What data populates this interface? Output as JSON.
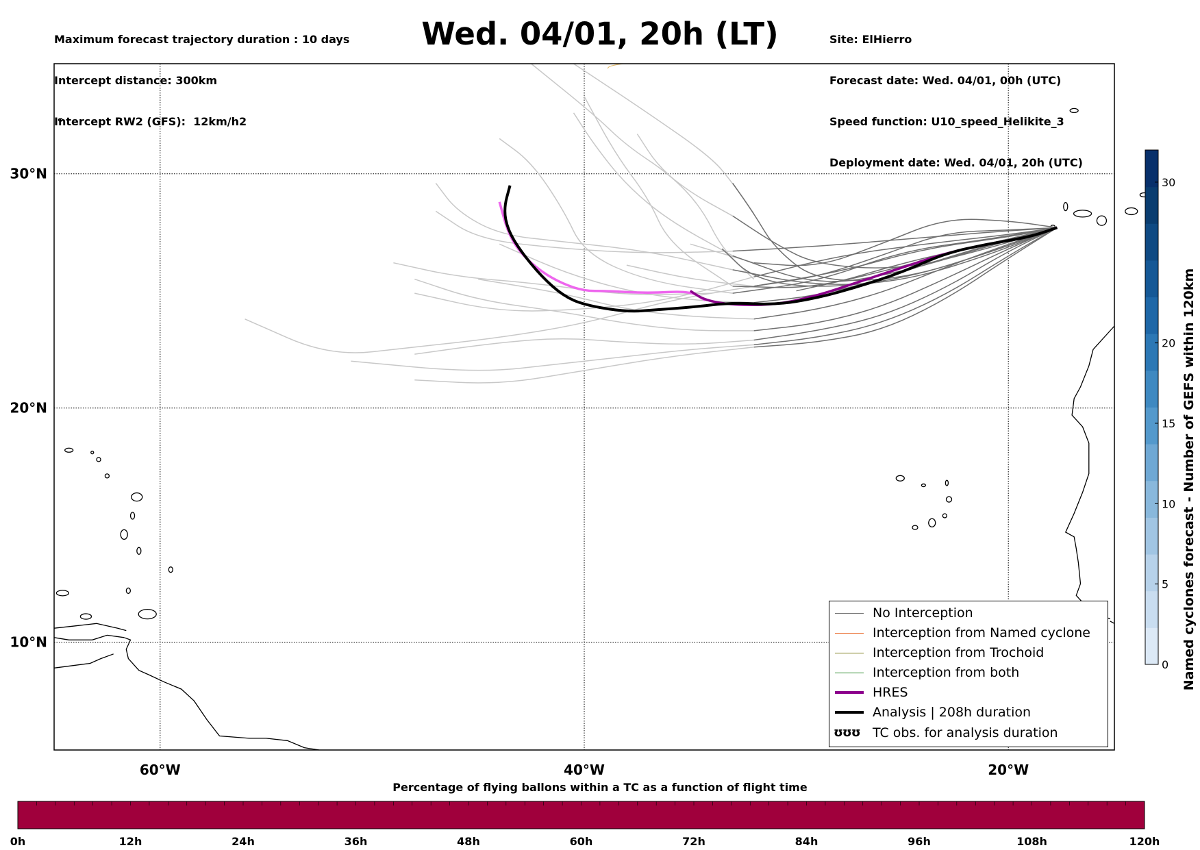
{
  "header": {
    "left_lines": [
      "Maximum forecast trajectory duration : 10 days",
      "Intercept distance: 300km",
      "Intercept RW2 (GFS):  12km/h2"
    ],
    "title": "Wed. 04/01, 20h (LT)",
    "right_lines": [
      "Site: ElHierro",
      "Forecast date: Wed. 04/01, 00h (UTC)",
      "Speed function: U10_speed_Helikite_3",
      "Deployment date: Wed. 04/01, 20h (UTC)"
    ]
  },
  "map": {
    "lat_labels": [
      "30°N",
      "20°N",
      "10°N"
    ],
    "lon_labels": [
      "60°W",
      "40°W",
      "20°W"
    ],
    "gridline_lats": [
      30,
      20,
      10
    ],
    "gridline_lons": [
      -60,
      -40,
      -20
    ],
    "extent": {
      "lon_min": -65,
      "lon_max": -15,
      "lat_min": 5.4,
      "lat_max": 34.7
    },
    "colors": {
      "no_interception": "#707070",
      "ensemble_far": "#c8c8c8",
      "named_cyclone": "#e8601c",
      "trochoid": "#808020",
      "both": "#2e8b2e",
      "hres": "#8b008b",
      "hres_extension": "#ee66ee",
      "analysis": "#000000"
    },
    "hres_track": [
      [
        -17.7,
        27.7
      ],
      [
        -19,
        27.3
      ],
      [
        -21,
        27
      ],
      [
        -23,
        26.6
      ],
      [
        -25,
        26
      ],
      [
        -27,
        25.4
      ],
      [
        -29,
        24.8
      ],
      [
        -31,
        24.4
      ],
      [
        -33,
        24.4
      ],
      [
        -34.3,
        24.6
      ],
      [
        -35,
        25
      ],
      [
        -37,
        24.9
      ],
      [
        -39,
        25
      ],
      [
        -40,
        25
      ],
      [
        -41,
        25.3
      ],
      [
        -42,
        25.8
      ],
      [
        -43,
        26.6
      ],
      [
        -43.6,
        27.5
      ],
      [
        -44,
        28.8
      ]
    ],
    "analysis_track": [
      [
        -17.7,
        27.7
      ],
      [
        -19,
        27.3
      ],
      [
        -21,
        27
      ],
      [
        -23,
        26.6
      ],
      [
        -25,
        25.8
      ],
      [
        -27,
        25.2
      ],
      [
        -29,
        24.7
      ],
      [
        -31,
        24.4
      ],
      [
        -33,
        24.5
      ],
      [
        -35,
        24.3
      ],
      [
        -36.5,
        24.2
      ],
      [
        -38,
        24.1
      ],
      [
        -40,
        24.4
      ],
      [
        -41,
        24.8
      ],
      [
        -42,
        25.6
      ],
      [
        -43,
        26.7
      ],
      [
        -43.6,
        27.6
      ],
      [
        -43.8,
        28.5
      ],
      [
        -43.5,
        29.5
      ]
    ],
    "ensemble_tracks": [
      [
        [
          -17.7,
          27.7
        ],
        [
          -20,
          28
        ],
        [
          -23,
          28.1
        ],
        [
          -26,
          27
        ],
        [
          -29,
          26
        ],
        [
          -32,
          26.2
        ],
        [
          -35,
          27
        ]
      ],
      [
        [
          -17.7,
          27.7
        ],
        [
          -20,
          27.6
        ],
        [
          -23,
          27.5
        ],
        [
          -26,
          26.5
        ],
        [
          -29,
          25.6
        ],
        [
          -32,
          25.2
        ],
        [
          -35,
          25.5
        ],
        [
          -38,
          26.1
        ]
      ],
      [
        [
          -17.7,
          27.7
        ],
        [
          -20,
          27.2
        ],
        [
          -23,
          26.4
        ],
        [
          -26,
          25.5
        ],
        [
          -29,
          24.8
        ],
        [
          -32,
          24.5
        ],
        [
          -35,
          24.6
        ],
        [
          -38,
          25
        ],
        [
          -41,
          25.8
        ],
        [
          -44,
          27
        ]
      ],
      [
        [
          -17.7,
          27.7
        ],
        [
          -20,
          27
        ],
        [
          -23,
          26
        ],
        [
          -26,
          24.9
        ],
        [
          -29,
          24.2
        ],
        [
          -32,
          23.8
        ],
        [
          -35,
          23.9
        ],
        [
          -38,
          24.2
        ],
        [
          -41,
          24.9
        ],
        [
          -45,
          25.5
        ]
      ],
      [
        [
          -17.7,
          27.7
        ],
        [
          -20,
          26.8
        ],
        [
          -23,
          25.5
        ],
        [
          -26,
          24.3
        ],
        [
          -29,
          23.6
        ],
        [
          -32,
          23.3
        ],
        [
          -35,
          23.3
        ],
        [
          -38,
          23.6
        ],
        [
          -41,
          24.1
        ],
        [
          -45,
          24.6
        ],
        [
          -48,
          25.5
        ]
      ],
      [
        [
          -17.7,
          27.7
        ],
        [
          -20,
          26.7
        ],
        [
          -23,
          25.1
        ],
        [
          -26,
          23.9
        ],
        [
          -29,
          23.3
        ],
        [
          -32,
          22.9
        ],
        [
          -35,
          22.7
        ],
        [
          -38,
          22.8
        ],
        [
          -41,
          23
        ],
        [
          -44,
          22.8
        ],
        [
          -48,
          22.3
        ]
      ],
      [
        [
          -17.7,
          27.7
        ],
        [
          -20,
          26.5
        ],
        [
          -23,
          24.8
        ],
        [
          -26,
          23.6
        ],
        [
          -29,
          23
        ],
        [
          -32,
          22.7
        ],
        [
          -35,
          22.5
        ],
        [
          -38,
          22.2
        ],
        [
          -41,
          21.9
        ],
        [
          -45,
          21.5
        ],
        [
          -51,
          22
        ]
      ],
      [
        [
          -17.7,
          27.7
        ],
        [
          -20,
          26.4
        ],
        [
          -23,
          24.6
        ],
        [
          -26,
          23.3
        ],
        [
          -29,
          22.8
        ],
        [
          -32,
          22.6
        ],
        [
          -36,
          22.2
        ],
        [
          -40,
          21.6
        ],
        [
          -44,
          21
        ],
        [
          -48,
          21.2
        ]
      ],
      [
        [
          -17.7,
          27.7
        ],
        [
          -20,
          27.4
        ],
        [
          -24,
          27
        ],
        [
          -28,
          26.5
        ],
        [
          -32,
          25.6
        ],
        [
          -36,
          24.6
        ],
        [
          -40,
          24.2
        ],
        [
          -44,
          24.1
        ],
        [
          -48,
          24.9
        ]
      ],
      [
        [
          -17.7,
          27.7
        ],
        [
          -20,
          27.3
        ],
        [
          -24,
          26.8
        ],
        [
          -28,
          25.8
        ],
        [
          -32,
          25.2
        ],
        [
          -36,
          24.6
        ],
        [
          -40,
          23.6
        ],
        [
          -44,
          23
        ],
        [
          -48,
          22.6
        ],
        [
          -52,
          22.2
        ],
        [
          -56,
          23.8
        ]
      ],
      [
        [
          -17.7,
          27.7
        ],
        [
          -21,
          27.5
        ],
        [
          -25,
          27.2
        ],
        [
          -29,
          26.9
        ],
        [
          -33,
          26.7
        ],
        [
          -37,
          26.6
        ],
        [
          -41,
          26.8
        ],
        [
          -45,
          27.2
        ],
        [
          -47,
          28.4
        ]
      ],
      [
        [
          -17.7,
          27.7
        ],
        [
          -21,
          27.2
        ],
        [
          -25,
          26.7
        ],
        [
          -29,
          25.4
        ],
        [
          -33,
          24.9
        ],
        [
          -37,
          25.4
        ],
        [
          -40,
          26.6
        ],
        [
          -41,
          28.5
        ],
        [
          -42.5,
          30.5
        ],
        [
          -44,
          31.5
        ]
      ],
      [
        [
          -17.7,
          27.7
        ],
        [
          -21,
          27
        ],
        [
          -25,
          26.2
        ],
        [
          -29,
          25.1
        ],
        [
          -33,
          25.2
        ],
        [
          -36,
          27
        ],
        [
          -37,
          29
        ],
        [
          -38.5,
          30.8
        ],
        [
          -40,
          33.3
        ]
      ],
      [
        [
          -17.7,
          27.7
        ],
        [
          -21,
          26.9
        ],
        [
          -25,
          25.8
        ],
        [
          -29,
          25.2
        ],
        [
          -33,
          26.5
        ],
        [
          -36,
          28
        ],
        [
          -38,
          29.5
        ],
        [
          -39.5,
          31.2
        ],
        [
          -40.5,
          32.6
        ]
      ],
      [
        [
          -17.7,
          27.7
        ],
        [
          -21,
          26.8
        ],
        [
          -25,
          25.9
        ],
        [
          -29,
          26.1
        ],
        [
          -31,
          27
        ],
        [
          -33,
          28.2
        ],
        [
          -35,
          29.2
        ],
        [
          -36.5,
          30.3
        ],
        [
          -37.5,
          31.7
        ]
      ],
      [
        [
          -17.7,
          27.7
        ],
        [
          -21,
          26.6
        ],
        [
          -25,
          25.5
        ],
        [
          -29,
          25.4
        ],
        [
          -31,
          26.8
        ],
        [
          -32,
          28.3
        ],
        [
          -33,
          29.6
        ],
        [
          -34,
          30.7
        ],
        [
          -37,
          32.6
        ],
        [
          -40.5,
          34.7
        ]
      ],
      [
        [
          -17.7,
          27.7
        ],
        [
          -21,
          26.6
        ],
        [
          -25,
          25.5
        ],
        [
          -29,
          25.1
        ],
        [
          -32,
          25.5
        ],
        [
          -33.5,
          26.8
        ],
        [
          -34.5,
          28.6
        ],
        [
          -36,
          30
        ],
        [
          -38,
          31.2
        ],
        [
          -39.5,
          32.5
        ],
        [
          -42.5,
          34.7
        ]
      ],
      [
        [
          -17.7,
          27.7
        ],
        [
          -21,
          26.5
        ],
        [
          -25,
          25.4
        ],
        [
          -29,
          25.2
        ],
        [
          -33,
          25.9
        ],
        [
          -37,
          26.7
        ],
        [
          -41,
          27.1
        ],
        [
          -44,
          27.4
        ],
        [
          -46,
          28.4
        ],
        [
          -47,
          29.6
        ]
      ],
      [
        [
          -17.7,
          27.7
        ],
        [
          -22,
          26.8
        ],
        [
          -26,
          25.8
        ],
        [
          -30,
          25
        ],
        [
          -34,
          24.9
        ],
        [
          -38,
          24.8
        ],
        [
          -42,
          25.3
        ],
        [
          -46,
          25.6
        ],
        [
          -49,
          26.2
        ]
      ]
    ],
    "ensemble_near_count": 8,
    "tc_small_track": [
      [
        -38.2,
        34.7
      ],
      [
        -38.8,
        34.6
      ],
      [
        -38.9,
        34.5
      ]
    ],
    "coastlines": [
      [
        [
          -15,
          23.5
        ],
        [
          -16,
          22.5
        ],
        [
          -16.2,
          21.8
        ],
        [
          -16.6,
          20.9
        ],
        [
          -16.9,
          20.4
        ],
        [
          -17,
          19.7
        ],
        [
          -16.5,
          19.2
        ],
        [
          -16.2,
          18.5
        ],
        [
          -16.2,
          17.2
        ],
        [
          -16.5,
          16.4
        ],
        [
          -16.9,
          15.5
        ],
        [
          -17.3,
          14.7
        ],
        [
          -16.9,
          14.5
        ],
        [
          -16.8,
          14
        ],
        [
          -16.7,
          13.4
        ],
        [
          -16.6,
          12.5
        ],
        [
          -16.8,
          12
        ],
        [
          -16.3,
          11.5
        ],
        [
          -15.8,
          11.2
        ],
        [
          -15.2,
          11
        ]
      ],
      [
        [
          -15,
          10.8
        ],
        [
          -15.2,
          10.9
        ]
      ],
      [
        [
          -61.6,
          10.5
        ],
        [
          -62,
          10.6
        ],
        [
          -63,
          10.8
        ],
        [
          -64,
          10.7
        ],
        [
          -65,
          10.6
        ]
      ],
      [
        [
          -61.7,
          10.2
        ],
        [
          -61.4,
          10.1
        ],
        [
          -61.6,
          9.7
        ],
        [
          -61.5,
          9.3
        ],
        [
          -61,
          8.8
        ],
        [
          -60.5,
          8.6
        ],
        [
          -59.8,
          8.3
        ],
        [
          -59,
          8
        ],
        [
          -58.4,
          7.5
        ],
        [
          -57.8,
          6.7
        ],
        [
          -57.2,
          6
        ],
        [
          -55.8,
          5.9
        ],
        [
          -55,
          5.9
        ],
        [
          -54,
          5.8
        ],
        [
          -53.2,
          5.5
        ],
        [
          -52.5,
          5.4
        ]
      ],
      [
        [
          -61.7,
          10.2
        ],
        [
          -62.5,
          10.3
        ],
        [
          -63.2,
          10.1
        ],
        [
          -64.3,
          10.1
        ],
        [
          -65,
          10.2
        ]
      ],
      [
        [
          -62.2,
          9.5
        ],
        [
          -62.8,
          9.3
        ],
        [
          -63.3,
          9.1
        ],
        [
          -65,
          8.9
        ]
      ]
    ],
    "islands": [
      {
        "lon": -17.3,
        "lat": 28.6,
        "rx": 3,
        "ry": 6
      },
      {
        "lon": -16.5,
        "lat": 28.3,
        "rx": 13,
        "ry": 5
      },
      {
        "lon": -15.6,
        "lat": 28,
        "rx": 7,
        "ry": 7
      },
      {
        "lon": -14.2,
        "lat": 28.4,
        "rx": 9,
        "ry": 5
      },
      {
        "lon": -13.6,
        "lat": 29.1,
        "rx": 6,
        "ry": 3
      },
      {
        "lon": -17.9,
        "lat": 27.75,
        "rx": 3,
        "ry": 2
      },
      {
        "lon": -16.9,
        "lat": 32.7,
        "rx": 6,
        "ry": 3
      },
      {
        "lon": -25.1,
        "lat": 17.0,
        "rx": 6,
        "ry": 4
      },
      {
        "lon": -24.0,
        "lat": 16.7,
        "rx": 3,
        "ry": 2
      },
      {
        "lon": -22.9,
        "lat": 16.8,
        "rx": 2,
        "ry": 4
      },
      {
        "lon": -22.8,
        "lat": 16.1,
        "rx": 4,
        "ry": 4
      },
      {
        "lon": -23.6,
        "lat": 15.1,
        "rx": 5,
        "ry": 6
      },
      {
        "lon": -24.4,
        "lat": 14.9,
        "rx": 4,
        "ry": 3
      },
      {
        "lon": -23.0,
        "lat": 15.4,
        "rx": 3,
        "ry": 3
      },
      {
        "lon": -61.7,
        "lat": 14.6,
        "rx": 5,
        "ry": 7
      },
      {
        "lon": -61.0,
        "lat": 13.9,
        "rx": 3,
        "ry": 5
      },
      {
        "lon": -61.1,
        "lat": 16.2,
        "rx": 8,
        "ry": 6
      },
      {
        "lon": -61.3,
        "lat": 15.4,
        "rx": 3,
        "ry": 5
      },
      {
        "lon": -61.5,
        "lat": 12.2,
        "rx": 3,
        "ry": 4
      },
      {
        "lon": -59.5,
        "lat": 13.1,
        "rx": 3,
        "ry": 4
      },
      {
        "lon": -64.3,
        "lat": 18.2,
        "rx": 6,
        "ry": 3
      },
      {
        "lon": -62.9,
        "lat": 17.8,
        "rx": 3,
        "ry": 3
      },
      {
        "lon": -64.6,
        "lat": 12.1,
        "rx": 9,
        "ry": 4
      },
      {
        "lon": -63.5,
        "lat": 11.1,
        "rx": 8,
        "ry": 4
      },
      {
        "lon": -60.6,
        "lat": 11.2,
        "rx": 13,
        "ry": 7
      },
      {
        "lon": -64.7,
        "lat": 32.3,
        "rx": 3,
        "ry": 2
      },
      {
        "lon": -62.5,
        "lat": 17.1,
        "rx": 3,
        "ry": 3
      },
      {
        "lon": -63.2,
        "lat": 18.1,
        "rx": 2,
        "ry": 2
      }
    ]
  },
  "legend": {
    "items": [
      {
        "label": "No Interception",
        "color": "#707070",
        "width": 1.5,
        "type": "line"
      },
      {
        "label": "Interception from Named cyclone",
        "color": "#e8601c",
        "width": 1.5,
        "type": "line"
      },
      {
        "label": "Interception from Trochoid",
        "color": "#808020",
        "width": 1.5,
        "type": "line"
      },
      {
        "label": "Interception from both",
        "color": "#2e8b2e",
        "width": 1.5,
        "type": "line"
      },
      {
        "label": "HRES",
        "color": "#8b008b",
        "width": 4,
        "type": "line"
      },
      {
        "label": "Analysis | 208h duration",
        "color": "#000000",
        "width": 4,
        "type": "line"
      },
      {
        "label": "TC obs. for analysis duration",
        "glyph": "ʊʊʊ",
        "type": "glyph"
      }
    ]
  },
  "colorbar_vertical": {
    "label": "Named cyclones forecast - Number of GEFS within 120km",
    "ticks": [
      "0",
      "5",
      "10",
      "15",
      "20",
      "30"
    ],
    "tick_values": [
      0,
      5,
      10,
      15,
      20,
      30
    ],
    "vmax": 32,
    "colors": [
      "#dce9f6",
      "#c9ddf0",
      "#b7d2ea",
      "#a1c5e3",
      "#89b8dc",
      "#6fa8d4",
      "#5499cc",
      "#3f89c1",
      "#2c78b5",
      "#1e67a7",
      "#155896",
      "#0f4a83",
      "#0a3d70",
      "#08306b"
    ]
  },
  "colorbar_horizontal": {
    "title": "Percentage of flying ballons within a TC as a function of flight time",
    "ticks": [
      "0h",
      "12h",
      "24h",
      "36h",
      "48h",
      "60h",
      "72h",
      "84h",
      "96h",
      "108h",
      "120h"
    ],
    "fill_color": "#a0003c"
  }
}
